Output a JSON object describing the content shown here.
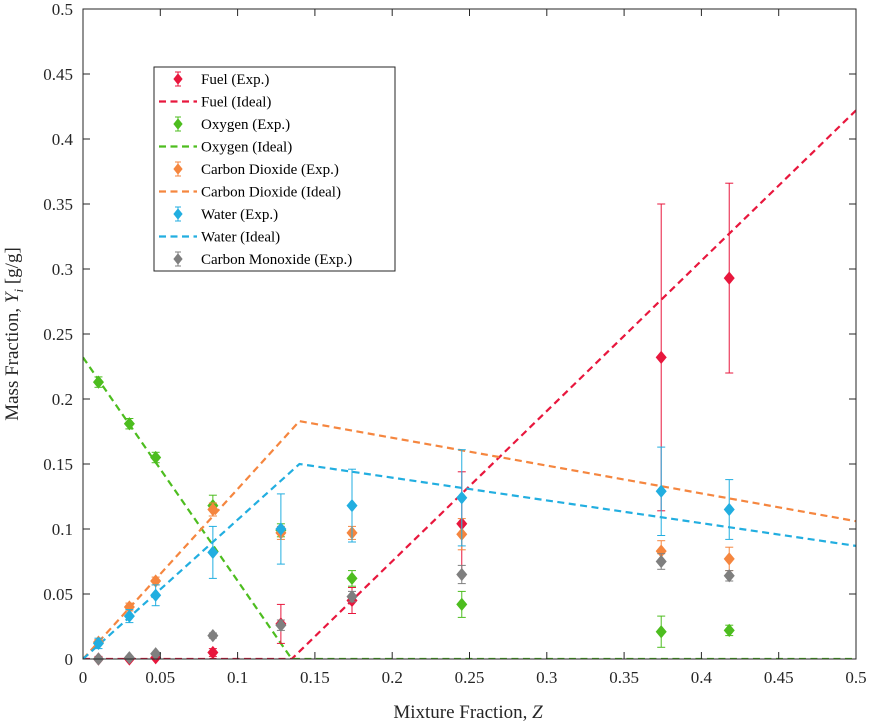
{
  "chart_data": {
    "type": "scatter",
    "title": "",
    "xlabel": "Mixture Fraction, ",
    "xlabel_var": "Z",
    "ylabel": "Mass Fraction, ",
    "ylabel_var": "Y",
    "ylabel_sub": "i",
    "ylabel_unit": " [g/g]",
    "xlim": [
      0,
      0.5
    ],
    "ylim": [
      0,
      0.5
    ],
    "xticks": [
      0,
      0.05,
      0.1,
      0.15,
      0.2,
      0.25,
      0.3,
      0.35,
      0.4,
      0.45,
      0.5
    ],
    "xtick_labels": [
      "0",
      "0.05",
      "0.1",
      "0.15",
      "0.2",
      "0.25",
      "0.3",
      "0.35",
      "0.4",
      "0.45",
      "0.5"
    ],
    "yticks": [
      0,
      0.05,
      0.1,
      0.15,
      0.2,
      0.25,
      0.3,
      0.35,
      0.4,
      0.45,
      0.5
    ],
    "ytick_labels": [
      "0",
      "0.05",
      "0.1",
      "0.15",
      "0.2",
      "0.25",
      "0.3",
      "0.35",
      "0.4",
      "0.45",
      "0.5"
    ],
    "grid": false,
    "legend_position": "top-left",
    "series": [
      {
        "name": "Fuel (Exp.)",
        "kind": "errorbar",
        "color": "#e8173d",
        "x": [
          0.01,
          0.03,
          0.047,
          0.084,
          0.128,
          0.174,
          0.245,
          0.374,
          0.418
        ],
        "y": [
          0.0,
          0.0,
          0.001,
          0.005,
          0.027,
          0.045,
          0.104,
          0.232,
          0.293
        ],
        "err": [
          0.002,
          0.002,
          0.002,
          0.003,
          0.015,
          0.01,
          0.04,
          0.118,
          0.073
        ]
      },
      {
        "name": "Fuel (Ideal)",
        "kind": "dashed",
        "color": "#e8173d",
        "x": [
          0,
          0.135,
          0.5
        ],
        "y": [
          0,
          0,
          0.422
        ]
      },
      {
        "name": "Oxygen (Exp.)",
        "kind": "errorbar",
        "color": "#4dbd1f",
        "x": [
          0.01,
          0.03,
          0.047,
          0.084,
          0.128,
          0.174,
          0.245,
          0.374,
          0.418
        ],
        "y": [
          0.213,
          0.181,
          0.155,
          0.118,
          0.099,
          0.062,
          0.042,
          0.021,
          0.022
        ],
        "err": [
          0.004,
          0.004,
          0.004,
          0.008,
          0.005,
          0.006,
          0.01,
          0.012,
          0.004
        ]
      },
      {
        "name": "Oxygen (Ideal)",
        "kind": "dashed",
        "color": "#4dbd1f",
        "x": [
          0,
          0.135,
          0.5
        ],
        "y": [
          0.232,
          0,
          0
        ]
      },
      {
        "name": "Carbon Dioxide (Exp.)",
        "kind": "errorbar",
        "color": "#f5863f",
        "x": [
          0.01,
          0.03,
          0.047,
          0.084,
          0.128,
          0.174,
          0.245,
          0.374,
          0.418
        ],
        "y": [
          0.013,
          0.04,
          0.06,
          0.115,
          0.097,
          0.097,
          0.096,
          0.083,
          0.077
        ],
        "err": [
          0.002,
          0.003,
          0.003,
          0.005,
          0.005,
          0.005,
          0.012,
          0.008,
          0.009
        ]
      },
      {
        "name": "Carbon Dioxide (Ideal)",
        "kind": "dashed",
        "color": "#f5863f",
        "x": [
          0,
          0.14,
          0.5
        ],
        "y": [
          0,
          0.183,
          0.106
        ]
      },
      {
        "name": "Water (Exp.)",
        "kind": "errorbar",
        "color": "#22aee0",
        "x": [
          0.01,
          0.03,
          0.047,
          0.084,
          0.128,
          0.174,
          0.245,
          0.374,
          0.418
        ],
        "y": [
          0.012,
          0.033,
          0.049,
          0.082,
          0.1,
          0.118,
          0.124,
          0.129,
          0.115
        ],
        "err": [
          0.004,
          0.005,
          0.008,
          0.02,
          0.027,
          0.028,
          0.037,
          0.034,
          0.023
        ]
      },
      {
        "name": "Water (Ideal)",
        "kind": "dashed",
        "color": "#22aee0",
        "x": [
          0,
          0.14,
          0.5
        ],
        "y": [
          0,
          0.15,
          0.087
        ]
      },
      {
        "name": "Carbon Monoxide (Exp.)",
        "kind": "errorbar",
        "color": "#7f7f7f",
        "x": [
          0.01,
          0.03,
          0.047,
          0.084,
          0.128,
          0.174,
          0.245,
          0.374,
          0.418
        ],
        "y": [
          0.0,
          0.001,
          0.004,
          0.018,
          0.026,
          0.048,
          0.065,
          0.075,
          0.064
        ],
        "err": [
          0.001,
          0.001,
          0.001,
          0.002,
          0.004,
          0.004,
          0.007,
          0.006,
          0.004
        ]
      }
    ]
  }
}
